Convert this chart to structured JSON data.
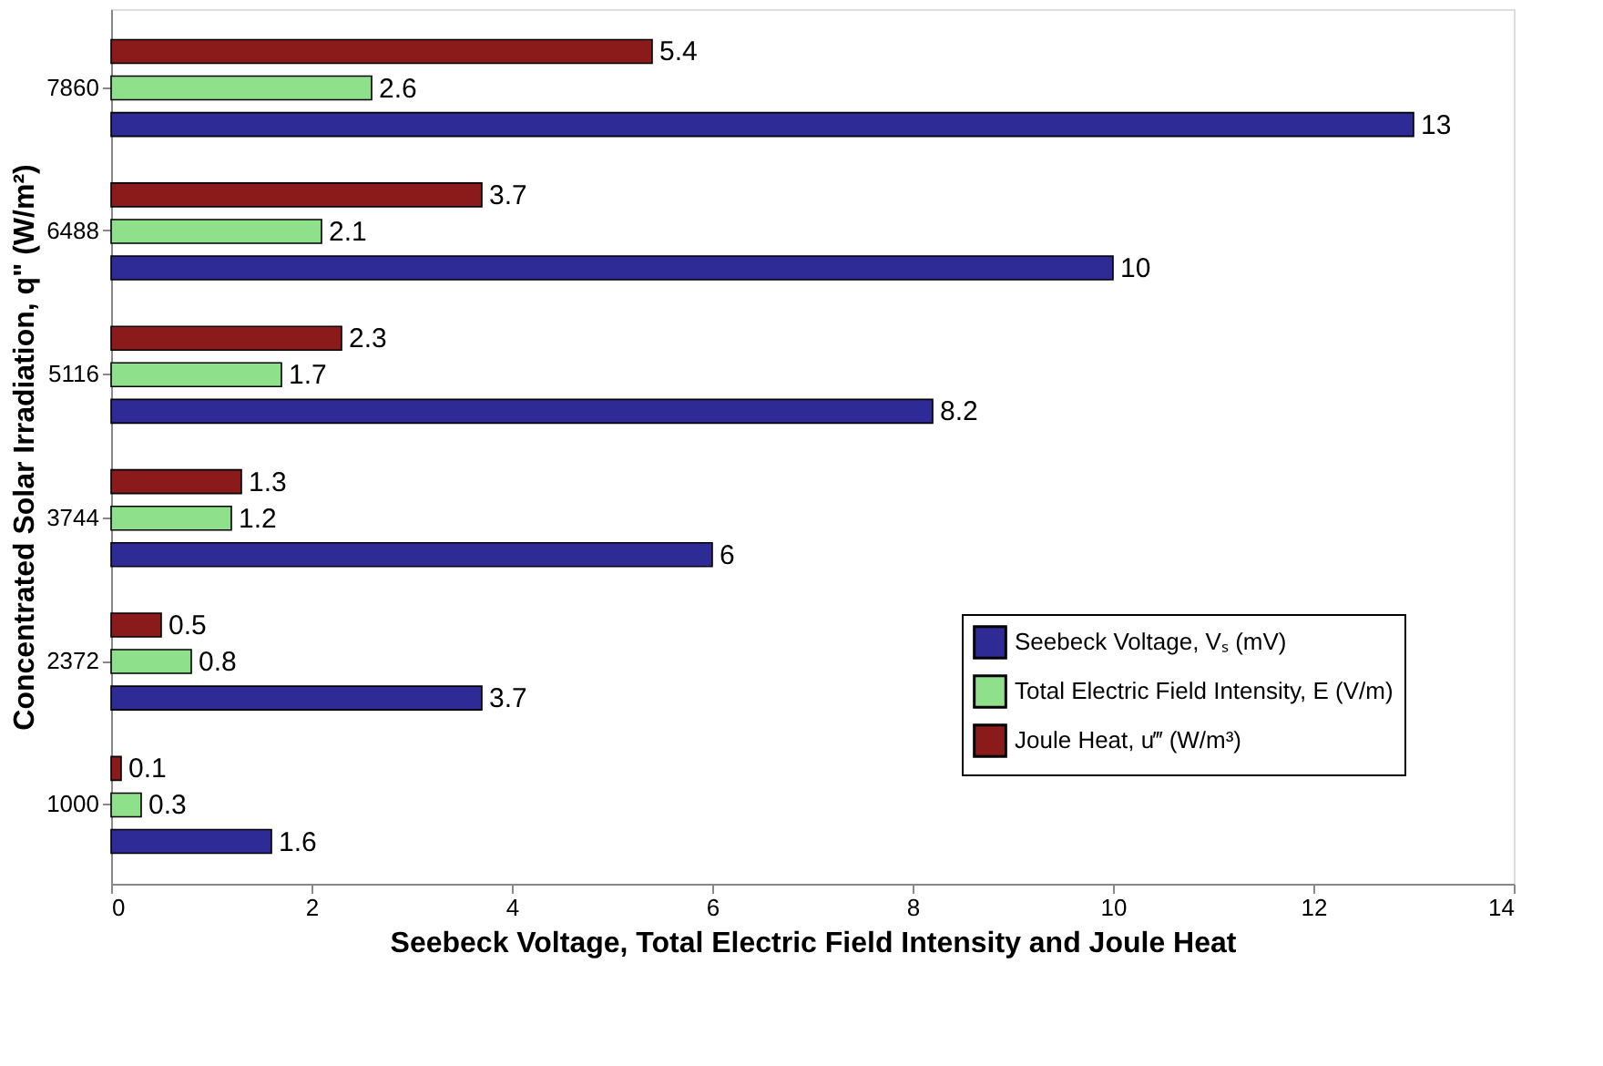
{
  "chart_data": {
    "type": "bar",
    "orientation": "horizontal",
    "xlabel": "Seebeck Voltage, Total Electric Field Intensity and Joule Heat",
    "ylabel": "Concentrated Solar Irradiation, q\" (W/m²)",
    "categories": [
      "7860",
      "6488",
      "5116",
      "3744",
      "2372",
      "1000"
    ],
    "series": [
      {
        "name": "Seebeck Voltage, Vₛ (mV)",
        "color": "#2e2b96",
        "values": [
          13,
          10,
          8.2,
          6,
          3.7,
          1.6
        ]
      },
      {
        "name": "Total Electric Field Intensity, E (V/m)",
        "color": "#8fe08a",
        "values": [
          2.6,
          2.1,
          1.7,
          1.2,
          0.8,
          0.3
        ]
      },
      {
        "name": "Joule Heat, u‴ (W/m³)",
        "color": "#8b1a1a",
        "values": [
          5.4,
          3.7,
          2.3,
          1.3,
          0.5,
          0.1
        ]
      }
    ],
    "xlim": [
      0,
      14
    ],
    "xticks": [
      0,
      2,
      4,
      6,
      8,
      10,
      12,
      14
    ],
    "data_labels": true,
    "legend": "bottom right",
    "grid": false
  }
}
